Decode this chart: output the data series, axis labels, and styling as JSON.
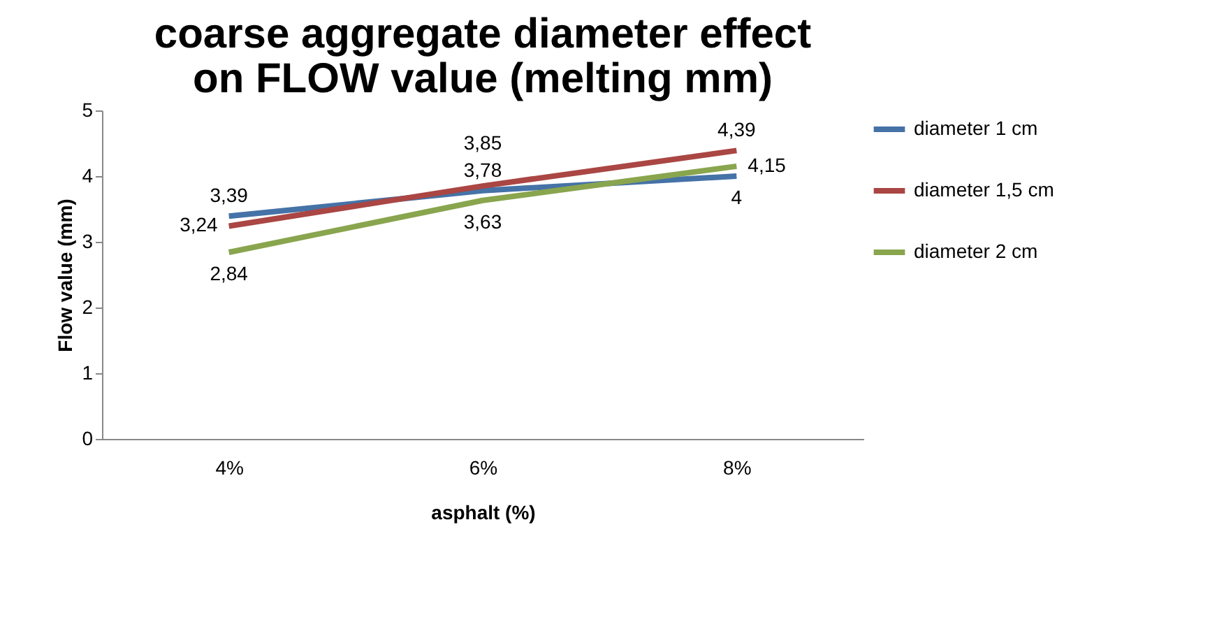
{
  "chart_data": {
    "type": "line",
    "title": "coarse aggregate diameter effect on FLOW value (melting mm)",
    "xlabel": "asphalt (%)",
    "ylabel": "Flow value (mm)",
    "categories": [
      "4%",
      "6%",
      "8%"
    ],
    "series": [
      {
        "name": "diameter 1 cm",
        "color": "#4572a7",
        "values": [
          3.39,
          3.78,
          4
        ],
        "value_labels": [
          "3,39",
          "3,78",
          "4"
        ]
      },
      {
        "name": "diameter 1,5 cm",
        "color": "#aa4643",
        "values": [
          3.24,
          3.85,
          4.39
        ],
        "value_labels": [
          "3,24",
          "3,85",
          "4,39"
        ]
      },
      {
        "name": "diameter 2 cm",
        "color": "#89a54e",
        "values": [
          2.84,
          3.63,
          4.15
        ],
        "value_labels": [
          "2,84",
          "3,63",
          "4,15"
        ]
      }
    ],
    "ylim": [
      0,
      5
    ],
    "yticks": [
      0,
      1,
      2,
      3,
      4,
      5
    ],
    "grid": false,
    "legend": "right",
    "marker": "none",
    "line_style": "solid"
  }
}
